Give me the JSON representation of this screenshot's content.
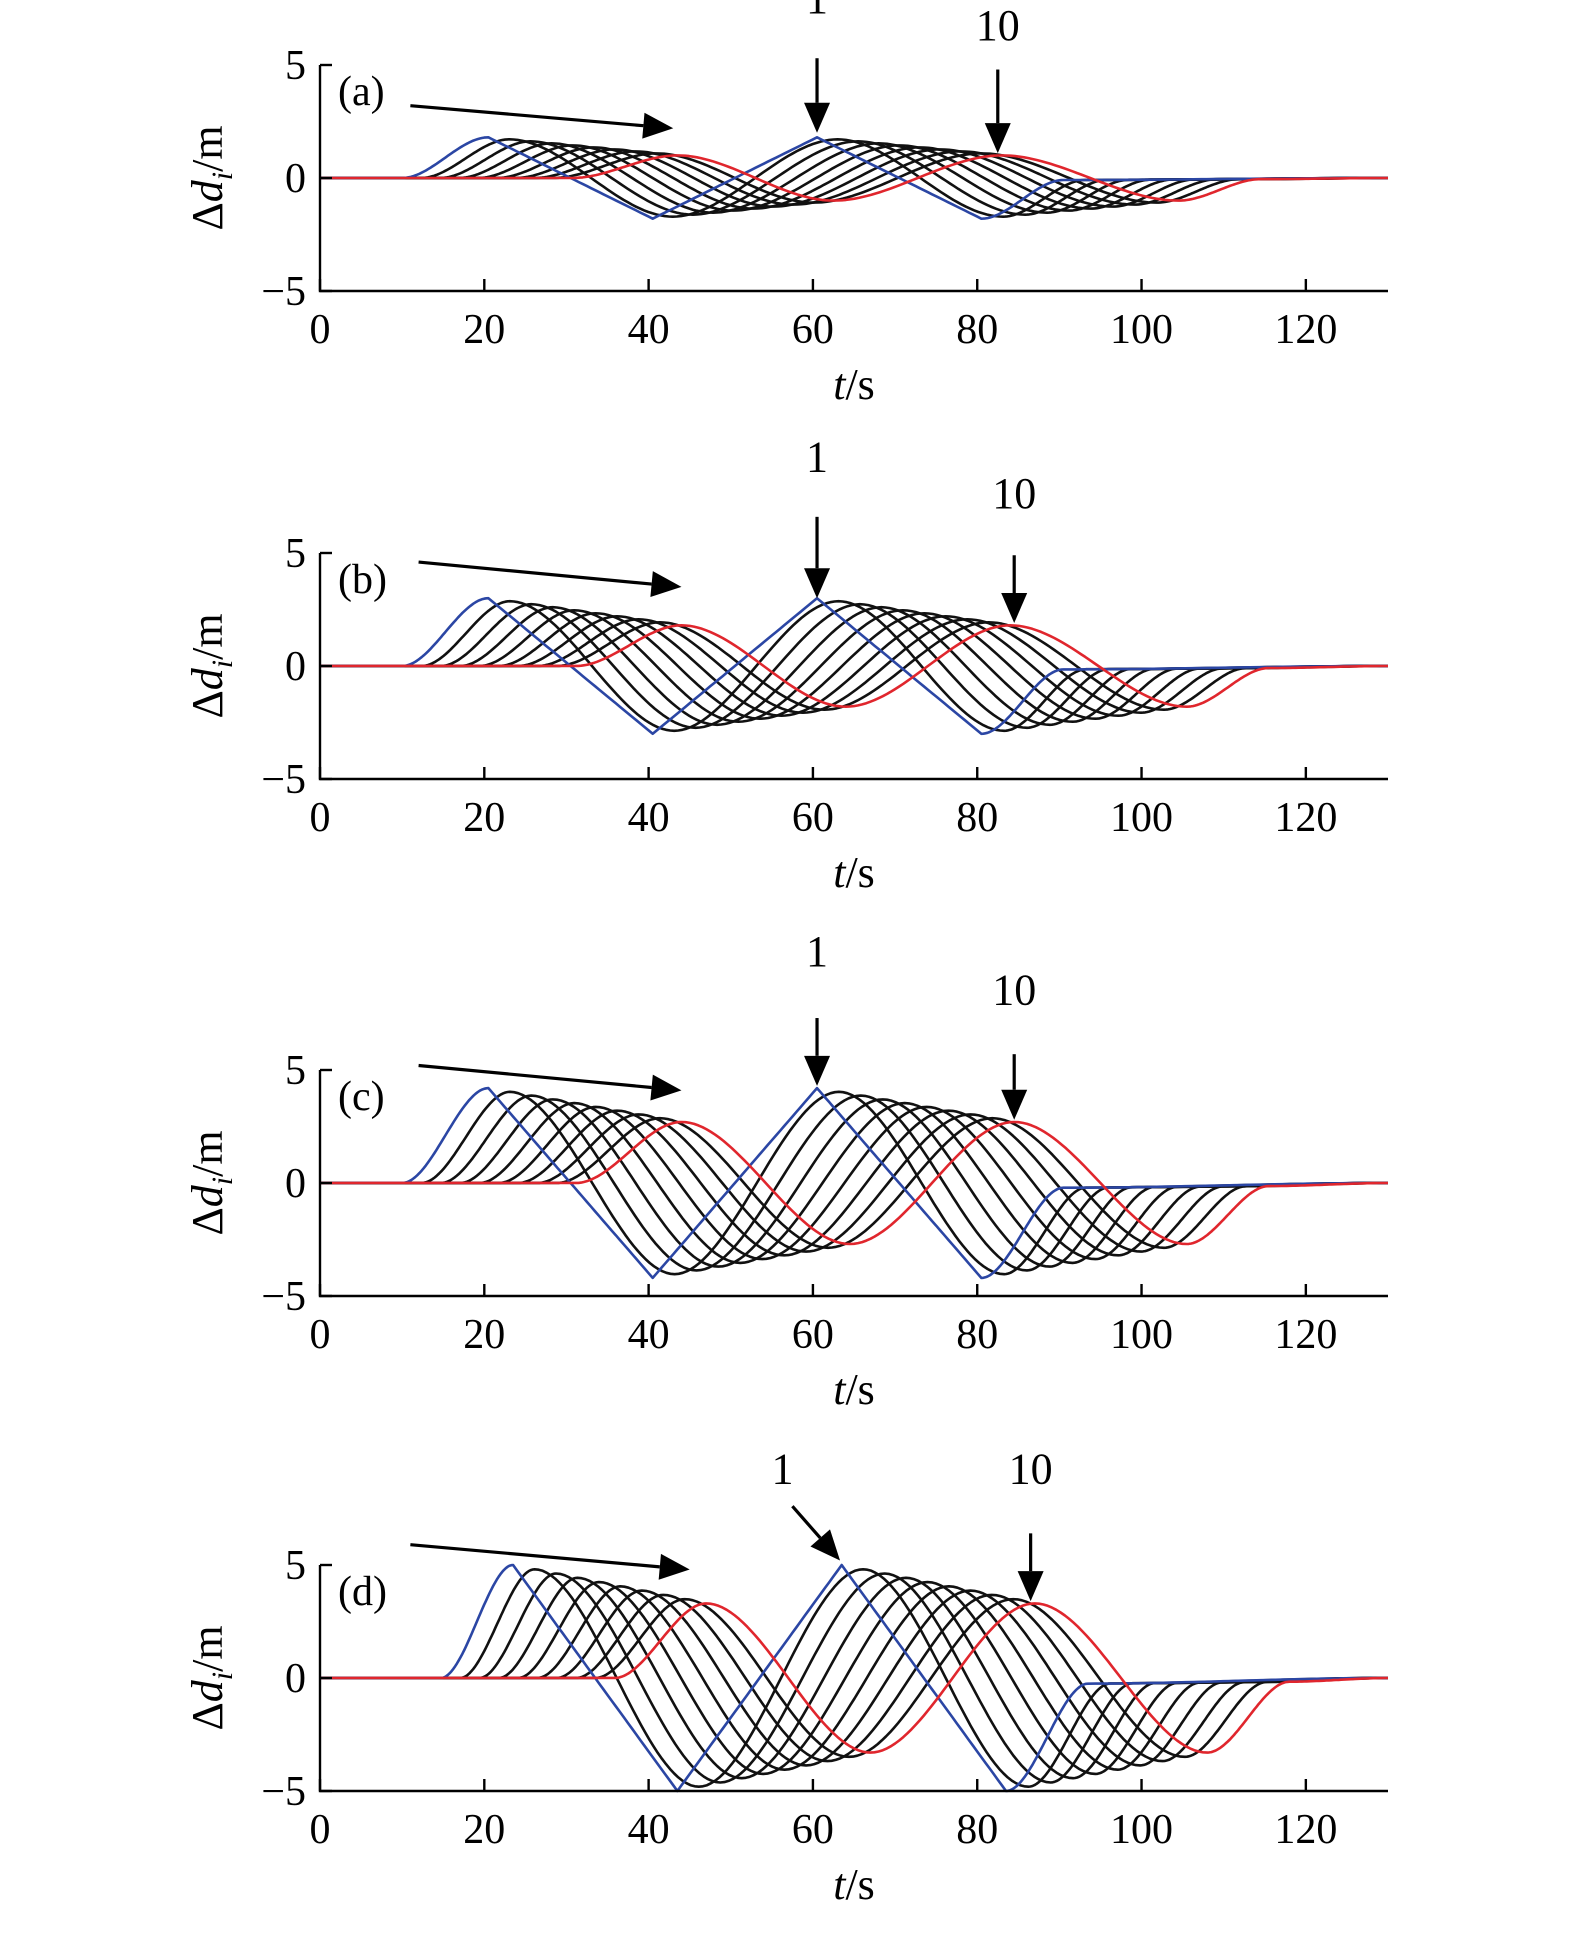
{
  "colors": {
    "first_vehicle": "#2b46a4",
    "middle_vehicles": "#111111",
    "last_vehicle": "#e0262d",
    "axes": "#000000"
  },
  "annotations": {
    "first_label": "1",
    "last_label": "10"
  },
  "chart_data": [
    {
      "type": "line",
      "panel_label": "(a)",
      "xlabel_italic": "t",
      "xlabel_unit": "/s",
      "ylabel_prefix": "Δ",
      "ylabel_italic": "d",
      "ylabel_sub": "i",
      "ylabel_unit": "/m",
      "xlim": [
        0,
        130
      ],
      "ylim": [
        -5,
        5
      ],
      "xticks": [
        0,
        20,
        40,
        60,
        80,
        100,
        120
      ],
      "yticks": [
        -5,
        0,
        5
      ],
      "vehicle_count": 10,
      "first_vehicle_peaks": [
        [
          20.5,
          1.8
        ],
        [
          40.5,
          -1.8
        ],
        [
          60.5,
          1.8
        ],
        [
          80.5,
          -1.8
        ]
      ],
      "last_vehicle_peaks": [
        [
          43.5,
          1.0
        ],
        [
          62.5,
          -1.0
        ],
        [
          83.0,
          1.0
        ],
        [
          104.5,
          -1.0
        ]
      ],
      "onset_time": 10,
      "settle_time": 130
    },
    {
      "type": "line",
      "panel_label": "(b)",
      "xlabel_italic": "t",
      "xlabel_unit": "/s",
      "ylabel_prefix": "Δ",
      "ylabel_italic": "d",
      "ylabel_sub": "i",
      "ylabel_unit": "/m",
      "xlim": [
        0,
        130
      ],
      "ylim": [
        -5,
        5
      ],
      "xticks": [
        0,
        20,
        40,
        60,
        80,
        100,
        120
      ],
      "yticks": [
        -5,
        0,
        5
      ],
      "vehicle_count": 10,
      "first_vehicle_peaks": [
        [
          20.5,
          3.0
        ],
        [
          40.5,
          -3.0
        ],
        [
          60.5,
          3.0
        ],
        [
          80.5,
          -3.0
        ]
      ],
      "last_vehicle_peaks": [
        [
          44.0,
          1.8
        ],
        [
          64.0,
          -1.8
        ],
        [
          84.0,
          1.8
        ],
        [
          105.5,
          -1.8
        ]
      ],
      "onset_time": 10,
      "settle_time": 130
    },
    {
      "type": "line",
      "panel_label": "(c)",
      "xlabel_italic": "t",
      "xlabel_unit": "/s",
      "ylabel_prefix": "Δ",
      "ylabel_italic": "d",
      "ylabel_sub": "i",
      "ylabel_unit": "/m",
      "xlim": [
        0,
        130
      ],
      "ylim": [
        -5,
        5
      ],
      "xticks": [
        0,
        20,
        40,
        60,
        80,
        100,
        120
      ],
      "yticks": [
        -5,
        0,
        5
      ],
      "vehicle_count": 10,
      "first_vehicle_peaks": [
        [
          20.5,
          4.2
        ],
        [
          40.5,
          -4.2
        ],
        [
          60.5,
          4.2
        ],
        [
          80.5,
          -4.2
        ]
      ],
      "last_vehicle_peaks": [
        [
          44.0,
          2.7
        ],
        [
          64.5,
          -2.7
        ],
        [
          84.5,
          2.7
        ],
        [
          105.5,
          -2.7
        ]
      ],
      "onset_time": 10,
      "settle_time": 130
    },
    {
      "type": "line",
      "panel_label": "(d)",
      "xlabel_italic": "t",
      "xlabel_unit": "/s",
      "ylabel_prefix": "Δ",
      "ylabel_italic": "d",
      "ylabel_sub": "i",
      "ylabel_unit": "/m",
      "xlim": [
        0,
        130
      ],
      "ylim": [
        -5,
        5
      ],
      "xticks": [
        0,
        20,
        40,
        60,
        80,
        100,
        120
      ],
      "yticks": [
        -5,
        0,
        5
      ],
      "vehicle_count": 10,
      "first_vehicle_peaks": [
        [
          23.5,
          5.0
        ],
        [
          43.5,
          -5.0
        ],
        [
          63.5,
          5.0
        ],
        [
          83.5,
          -5.0
        ]
      ],
      "last_vehicle_peaks": [
        [
          47.0,
          3.3
        ],
        [
          67.0,
          -3.3
        ],
        [
          87.0,
          3.3
        ],
        [
          108.0,
          -3.3
        ]
      ],
      "onset_time": 12,
      "settle_time": 130
    }
  ]
}
